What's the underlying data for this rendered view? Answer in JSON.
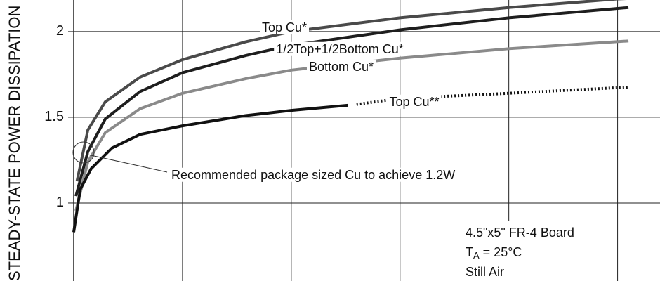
{
  "chart_data": {
    "type": "line",
    "ylabel": "STEADY-STATE POWER DISSIPATION",
    "xlim": [
      0,
      5.39
    ],
    "xticks": [
      1,
      2,
      3,
      4,
      5
    ],
    "ylim": [
      0.545,
      2.184
    ],
    "yticks": [
      1,
      1.5,
      2
    ],
    "grid": true,
    "series": [
      {
        "name": "Top Cu*",
        "color": "#4a4a4a",
        "x": [
          0.03,
          0.13,
          0.29,
          0.61,
          1.0,
          1.58,
          2.0,
          3.0,
          4.0,
          5.0,
          5.39
        ],
        "values": [
          1.127,
          1.426,
          1.59,
          1.734,
          1.836,
          1.94,
          2.0,
          2.08,
          2.14,
          2.19,
          2.2
        ]
      },
      {
        "name": "1/2Top+1/2Bottom Cu*",
        "color": "#1e1e1e",
        "x": [
          0.02,
          0.13,
          0.29,
          0.61,
          1.0,
          1.58,
          2.0,
          3.0,
          4.0,
          5.1
        ],
        "values": [
          1.04,
          1.3,
          1.49,
          1.65,
          1.76,
          1.86,
          1.92,
          2.01,
          2.08,
          2.14
        ]
      },
      {
        "name": "Bottom Cu*",
        "color": "#8a8a8a",
        "x": [
          0.02,
          0.13,
          0.29,
          0.61,
          1.0,
          1.58,
          2.0,
          3.0,
          4.0,
          5.1
        ],
        "values": [
          0.955,
          1.24,
          1.41,
          1.55,
          1.64,
          1.725,
          1.775,
          1.845,
          1.9,
          1.945
        ]
      },
      {
        "name": "Top Cu**",
        "color": "#111111",
        "dash_start": 9,
        "x": [
          0,
          0.06,
          0.16,
          0.35,
          0.61,
          1.0,
          1.58,
          2.0,
          2.52,
          2.6,
          3.0,
          4.0,
          5.1
        ],
        "values": [
          0.83,
          1.08,
          1.2,
          1.32,
          1.4,
          1.45,
          1.51,
          1.54,
          1.57,
          1.575,
          1.61,
          1.64,
          1.676
        ]
      }
    ],
    "annotation": "Recommended package sized Cu to achieve 1.2W",
    "conditions": {
      "board": "4.5\"x5\" FR-4 Board",
      "temp_symbol": "T",
      "temp_subscript": "A",
      "temp_value": " = 25°C",
      "air": "Still Air"
    }
  }
}
